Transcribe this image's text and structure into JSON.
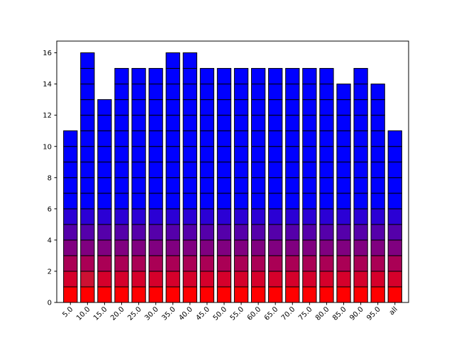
{
  "chart_data": {
    "type": "bar",
    "stacked": true,
    "categories": [
      "5.0",
      "10.0",
      "15.0",
      "20.0",
      "25.0",
      "30.0",
      "35.0",
      "40.0",
      "45.0",
      "50.0",
      "55.0",
      "60.0",
      "65.0",
      "70.0",
      "75.0",
      "80.0",
      "85.0",
      "90.0",
      "95.0",
      "all"
    ],
    "values": [
      11,
      16,
      13,
      15,
      15,
      15,
      16,
      16,
      15,
      15,
      15,
      15,
      15,
      15,
      15,
      15,
      14,
      15,
      14,
      11
    ],
    "segment_height": 1,
    "ylim": [
      0,
      16.75
    ],
    "yticks": [
      "0",
      "2",
      "4",
      "6",
      "8",
      "10",
      "12",
      "14",
      "16"
    ],
    "ytick_values": [
      0,
      2,
      4,
      6,
      8,
      10,
      12,
      14,
      16
    ],
    "xtick_rotation": 45,
    "title": "",
    "xlabel": "",
    "ylabel": "",
    "grid": false,
    "colors": {
      "bottom": "#ff0000",
      "top": "#0000ff",
      "highlight": "#cc1133",
      "edge": "#000000"
    },
    "highlighted_segment": {
      "category": "10.0",
      "segment_index": 1
    }
  }
}
